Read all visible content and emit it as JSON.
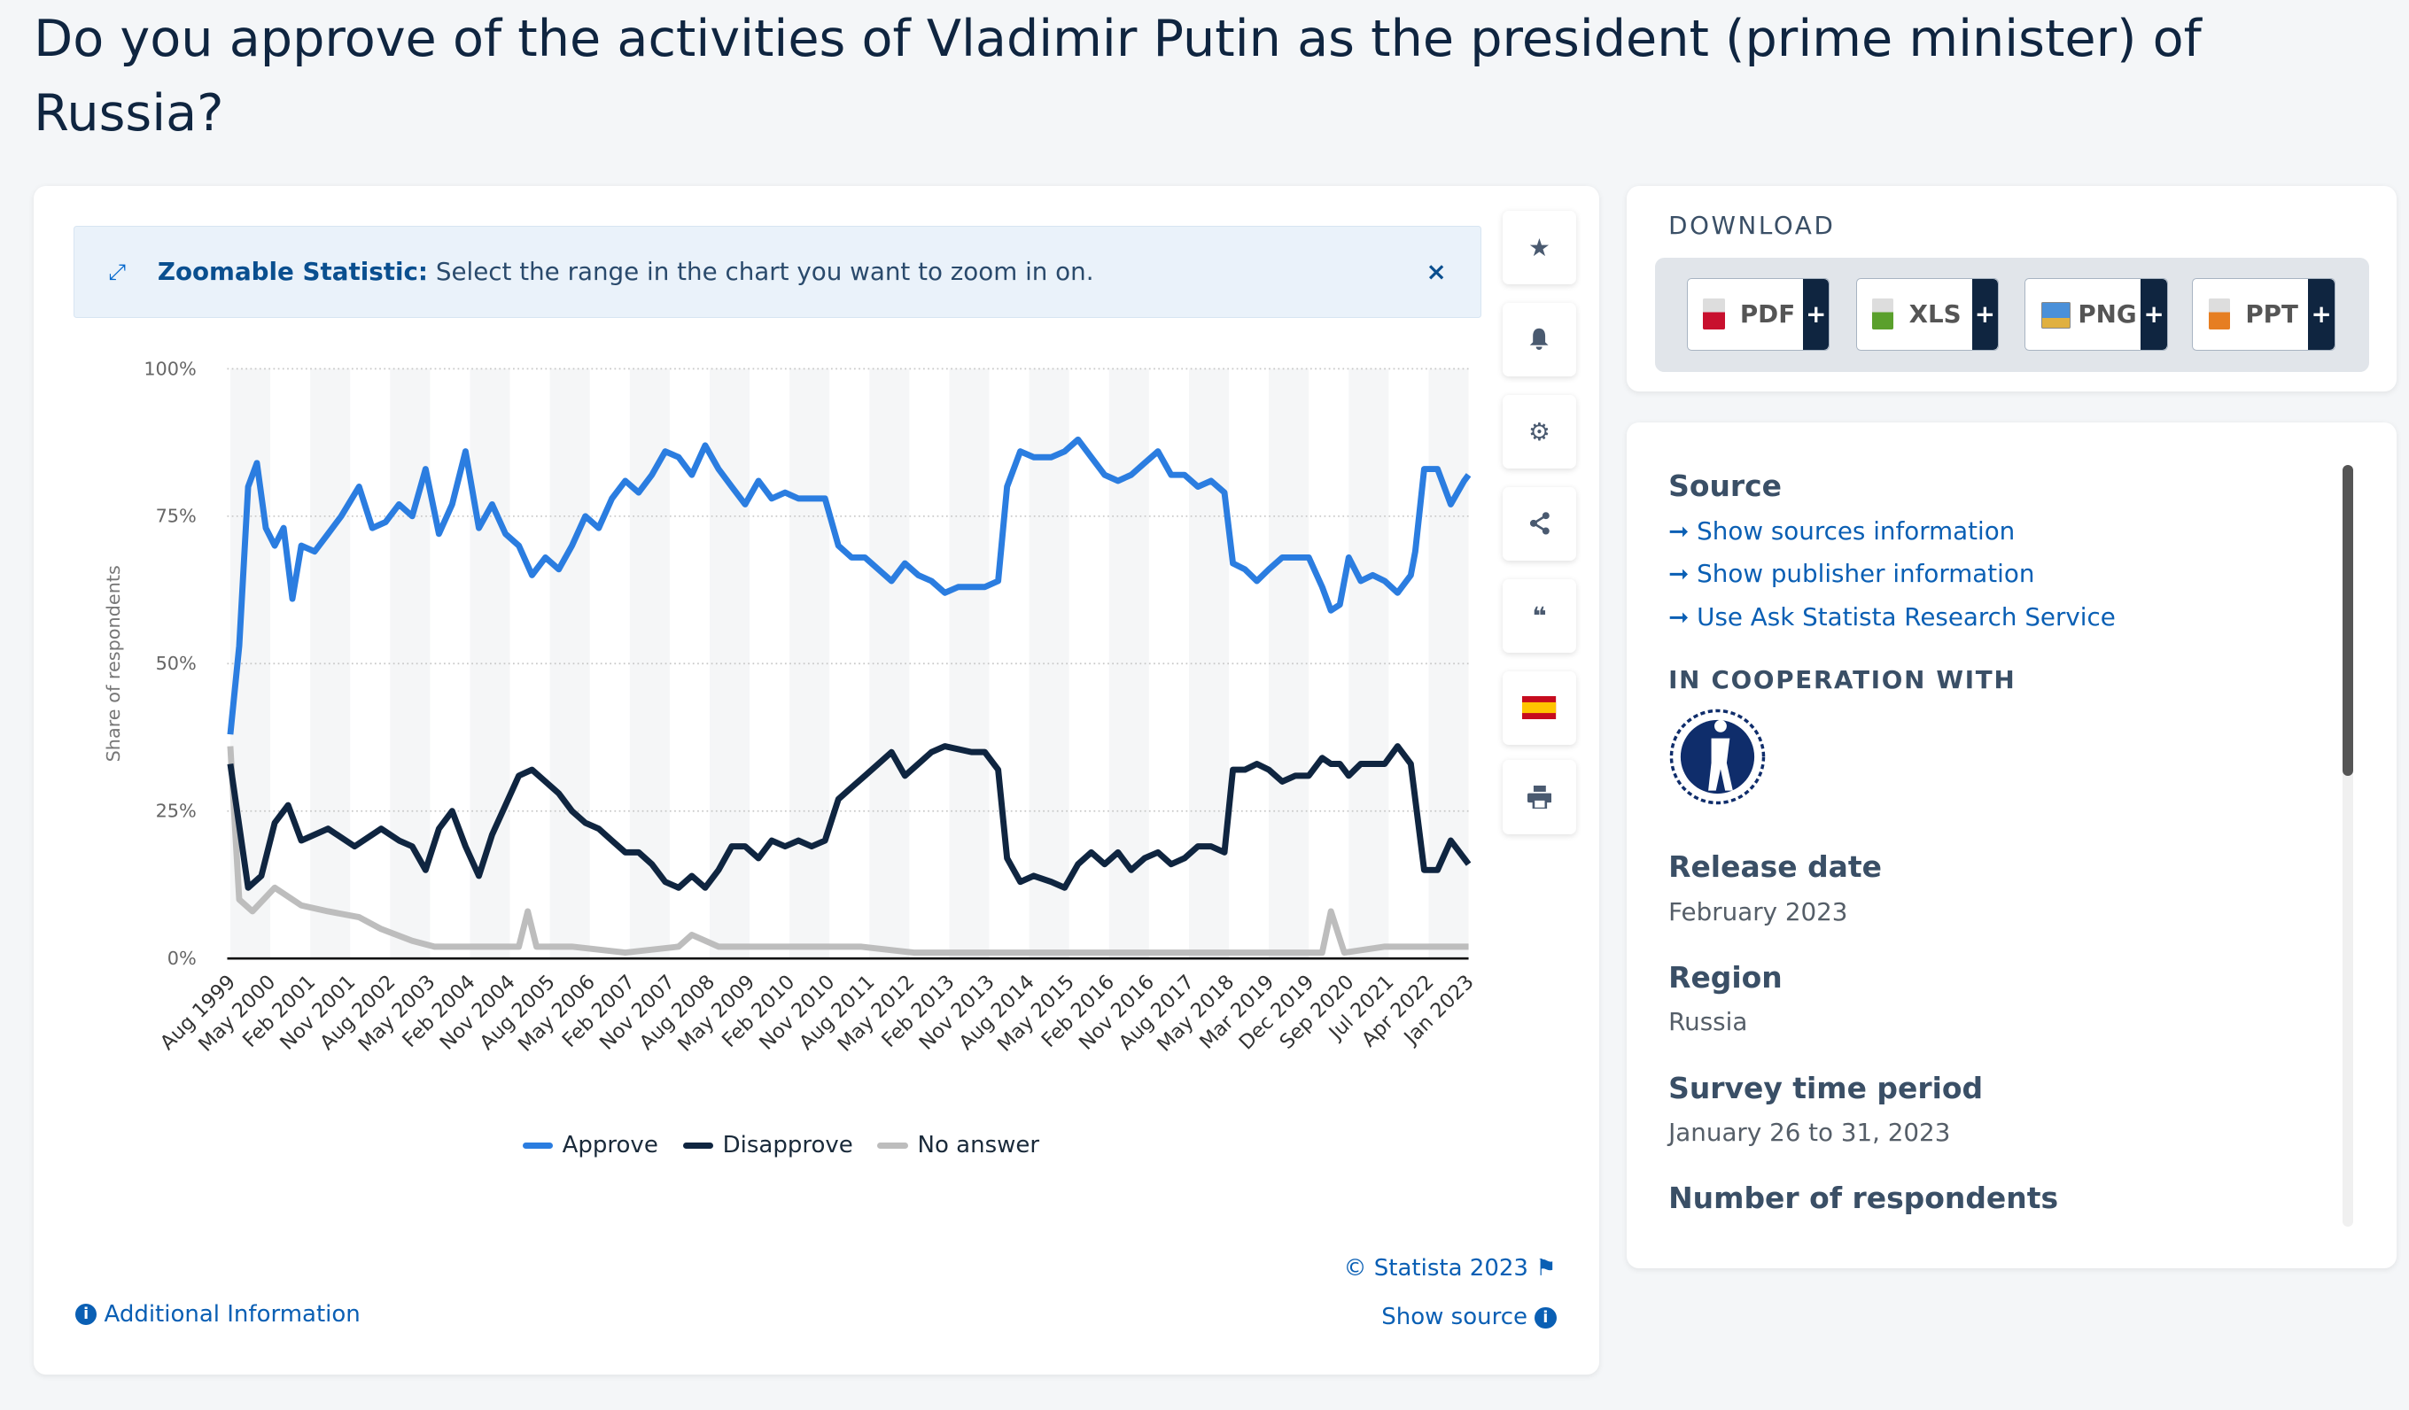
{
  "title": "Do you approve of the activities of Vladimir Putin as the president (prime minister) of Russia?",
  "zoom_banner": {
    "bold": "Zoomable Statistic:",
    "text": "Select the range in the chart you want to zoom in on.",
    "close": "×"
  },
  "tools": [
    {
      "icon": "star-icon"
    },
    {
      "icon": "bell-icon"
    },
    {
      "icon": "gear-icon"
    },
    {
      "icon": "share-icon"
    },
    {
      "icon": "quote-icon"
    },
    {
      "icon": "spain-flag-icon"
    },
    {
      "icon": "print-icon"
    }
  ],
  "footer": {
    "copyright": "© Statista 2023",
    "show_source": "Show source",
    "additional_info": "Additional Information"
  },
  "download": {
    "heading": "DOWNLOAD",
    "buttons": [
      {
        "label": "PDF",
        "color": "#c8102e"
      },
      {
        "label": "XLS",
        "color": "#5aa02c"
      },
      {
        "label": "PNG",
        "color": "#4a90d9"
      },
      {
        "label": "PPT",
        "color": "#e67e22"
      }
    ]
  },
  "sidebar": {
    "source_heading": "Source",
    "links": [
      "Show sources information",
      "Show publisher information",
      "Use Ask Statista Research Service"
    ],
    "cooperation_heading": "IN COOPERATION WITH",
    "cooperation_logo": "Levada-Center",
    "release_label": "Release date",
    "release_value": "February 2023",
    "region_label": "Region",
    "region_value": "Russia",
    "period_label": "Survey time period",
    "period_value": "January 26 to 31, 2023",
    "respondents_label": "Number of respondents"
  },
  "chart_data": {
    "type": "line",
    "ylabel": "Share of respondents",
    "ylim": [
      0,
      100
    ],
    "yticks": [
      "0%",
      "25%",
      "50%",
      "75%",
      "100%"
    ],
    "grid": true,
    "legend_position": "bottom",
    "x_tick_labels": [
      "Aug 1999",
      "May 2000",
      "Feb 2001",
      "Nov 2001",
      "Aug 2002",
      "May 2003",
      "Feb 2004",
      "Nov 2004",
      "Aug 2005",
      "May 2006",
      "Feb 2007",
      "Nov 2007",
      "Aug 2008",
      "May 2009",
      "Feb 2010",
      "Nov 2010",
      "Aug 2011",
      "May 2012",
      "Feb 2013",
      "Nov 2013",
      "Aug 2014",
      "May 2015",
      "Feb 2016",
      "Nov 2016",
      "Aug 2017",
      "May 2018",
      "Mar 2019",
      "Dec 2019",
      "Sep 2020",
      "Jul 2021",
      "Apr 2022",
      "Jan 2023"
    ],
    "series": [
      {
        "name": "Approve",
        "color": "#2b7de0",
        "points": [
          [
            "1999-08",
            38
          ],
          [
            "1999-10",
            53
          ],
          [
            "1999-12",
            80
          ],
          [
            "2000-02",
            84
          ],
          [
            "2000-04",
            73
          ],
          [
            "2000-06",
            70
          ],
          [
            "2000-08",
            73
          ],
          [
            "2000-10",
            61
          ],
          [
            "2000-12",
            70
          ],
          [
            "2001-03",
            69
          ],
          [
            "2001-06",
            72
          ],
          [
            "2001-09",
            75
          ],
          [
            "2002-01",
            80
          ],
          [
            "2002-04",
            73
          ],
          [
            "2002-07",
            74
          ],
          [
            "2002-10",
            77
          ],
          [
            "2003-01",
            75
          ],
          [
            "2003-04",
            83
          ],
          [
            "2003-07",
            72
          ],
          [
            "2003-10",
            77
          ],
          [
            "2004-01",
            86
          ],
          [
            "2004-04",
            73
          ],
          [
            "2004-07",
            77
          ],
          [
            "2004-10",
            72
          ],
          [
            "2005-01",
            70
          ],
          [
            "2005-04",
            65
          ],
          [
            "2005-07",
            68
          ],
          [
            "2005-10",
            66
          ],
          [
            "2006-01",
            70
          ],
          [
            "2006-04",
            75
          ],
          [
            "2006-07",
            73
          ],
          [
            "2006-10",
            78
          ],
          [
            "2007-01",
            81
          ],
          [
            "2007-04",
            79
          ],
          [
            "2007-07",
            82
          ],
          [
            "2007-10",
            86
          ],
          [
            "2008-01",
            85
          ],
          [
            "2008-04",
            82
          ],
          [
            "2008-07",
            87
          ],
          [
            "2008-10",
            83
          ],
          [
            "2009-01",
            80
          ],
          [
            "2009-04",
            77
          ],
          [
            "2009-07",
            81
          ],
          [
            "2009-10",
            78
          ],
          [
            "2010-01",
            79
          ],
          [
            "2010-04",
            78
          ],
          [
            "2010-07",
            78
          ],
          [
            "2010-10",
            78
          ],
          [
            "2011-01",
            70
          ],
          [
            "2011-04",
            68
          ],
          [
            "2011-07",
            68
          ],
          [
            "2011-10",
            66
          ],
          [
            "2012-01",
            64
          ],
          [
            "2012-04",
            67
          ],
          [
            "2012-07",
            65
          ],
          [
            "2012-10",
            64
          ],
          [
            "2013-01",
            62
          ],
          [
            "2013-04",
            63
          ],
          [
            "2013-07",
            63
          ],
          [
            "2013-10",
            63
          ],
          [
            "2014-01",
            64
          ],
          [
            "2014-03",
            80
          ],
          [
            "2014-06",
            86
          ],
          [
            "2014-09",
            85
          ],
          [
            "2015-01",
            85
          ],
          [
            "2015-04",
            86
          ],
          [
            "2015-07",
            88
          ],
          [
            "2015-10",
            85
          ],
          [
            "2016-01",
            82
          ],
          [
            "2016-04",
            81
          ],
          [
            "2016-07",
            82
          ],
          [
            "2016-10",
            84
          ],
          [
            "2017-01",
            86
          ],
          [
            "2017-04",
            82
          ],
          [
            "2017-07",
            82
          ],
          [
            "2017-10",
            80
          ],
          [
            "2018-01",
            81
          ],
          [
            "2018-04",
            79
          ],
          [
            "2018-06",
            67
          ],
          [
            "2018-09",
            66
          ],
          [
            "2018-12",
            64
          ],
          [
            "2019-03",
            66
          ],
          [
            "2019-06",
            68
          ],
          [
            "2019-09",
            68
          ],
          [
            "2019-12",
            68
          ],
          [
            "2020-03",
            63
          ],
          [
            "2020-05",
            59
          ],
          [
            "2020-07",
            60
          ],
          [
            "2020-09",
            68
          ],
          [
            "2020-12",
            64
          ],
          [
            "2021-03",
            65
          ],
          [
            "2021-06",
            64
          ],
          [
            "2021-09",
            62
          ],
          [
            "2021-12",
            65
          ],
          [
            "2022-01",
            69
          ],
          [
            "2022-03",
            83
          ],
          [
            "2022-06",
            83
          ],
          [
            "2022-09",
            77
          ],
          [
            "2022-12",
            81
          ],
          [
            "2023-01",
            82
          ]
        ]
      },
      {
        "name": "Disapprove",
        "color": "#0f2540",
        "points": [
          [
            "1999-08",
            33
          ],
          [
            "1999-12",
            12
          ],
          [
            "2000-03",
            14
          ],
          [
            "2000-06",
            23
          ],
          [
            "2000-09",
            26
          ],
          [
            "2000-12",
            20
          ],
          [
            "2001-06",
            22
          ],
          [
            "2001-12",
            19
          ],
          [
            "2002-06",
            22
          ],
          [
            "2002-10",
            20
          ],
          [
            "2003-01",
            19
          ],
          [
            "2003-04",
            15
          ],
          [
            "2003-07",
            22
          ],
          [
            "2003-10",
            25
          ],
          [
            "2004-01",
            19
          ],
          [
            "2004-04",
            14
          ],
          [
            "2004-07",
            21
          ],
          [
            "2004-10",
            26
          ],
          [
            "2005-01",
            31
          ],
          [
            "2005-04",
            32
          ],
          [
            "2005-07",
            30
          ],
          [
            "2005-10",
            28
          ],
          [
            "2006-01",
            25
          ],
          [
            "2006-04",
            23
          ],
          [
            "2006-07",
            22
          ],
          [
            "2006-10",
            20
          ],
          [
            "2007-01",
            18
          ],
          [
            "2007-04",
            18
          ],
          [
            "2007-07",
            16
          ],
          [
            "2007-10",
            13
          ],
          [
            "2008-01",
            12
          ],
          [
            "2008-04",
            14
          ],
          [
            "2008-07",
            12
          ],
          [
            "2008-10",
            15
          ],
          [
            "2009-01",
            19
          ],
          [
            "2009-04",
            19
          ],
          [
            "2009-07",
            17
          ],
          [
            "2009-10",
            20
          ],
          [
            "2010-01",
            19
          ],
          [
            "2010-04",
            20
          ],
          [
            "2010-07",
            19
          ],
          [
            "2010-10",
            20
          ],
          [
            "2011-01",
            27
          ],
          [
            "2011-04",
            29
          ],
          [
            "2011-07",
            31
          ],
          [
            "2011-10",
            33
          ],
          [
            "2012-01",
            35
          ],
          [
            "2012-04",
            31
          ],
          [
            "2012-07",
            33
          ],
          [
            "2012-10",
            35
          ],
          [
            "2013-01",
            36
          ],
          [
            "2013-07",
            35
          ],
          [
            "2013-10",
            35
          ],
          [
            "2014-01",
            32
          ],
          [
            "2014-03",
            17
          ],
          [
            "2014-06",
            13
          ],
          [
            "2014-09",
            14
          ],
          [
            "2015-01",
            13
          ],
          [
            "2015-04",
            12
          ],
          [
            "2015-07",
            16
          ],
          [
            "2015-10",
            18
          ],
          [
            "2016-01",
            16
          ],
          [
            "2016-04",
            18
          ],
          [
            "2016-07",
            15
          ],
          [
            "2016-10",
            17
          ],
          [
            "2017-01",
            18
          ],
          [
            "2017-04",
            16
          ],
          [
            "2017-07",
            17
          ],
          [
            "2017-10",
            19
          ],
          [
            "2018-01",
            19
          ],
          [
            "2018-04",
            18
          ],
          [
            "2018-06",
            32
          ],
          [
            "2018-09",
            32
          ],
          [
            "2018-12",
            33
          ],
          [
            "2019-03",
            32
          ],
          [
            "2019-06",
            30
          ],
          [
            "2019-09",
            31
          ],
          [
            "2019-12",
            31
          ],
          [
            "2020-03",
            34
          ],
          [
            "2020-05",
            33
          ],
          [
            "2020-07",
            33
          ],
          [
            "2020-09",
            31
          ],
          [
            "2020-12",
            33
          ],
          [
            "2021-03",
            33
          ],
          [
            "2021-06",
            33
          ],
          [
            "2021-09",
            36
          ],
          [
            "2021-12",
            33
          ],
          [
            "2022-01",
            27
          ],
          [
            "2022-03",
            15
          ],
          [
            "2022-06",
            15
          ],
          [
            "2022-09",
            20
          ],
          [
            "2022-12",
            17
          ],
          [
            "2023-01",
            16
          ]
        ]
      },
      {
        "name": "No answer",
        "color": "#bdbdbd",
        "points": [
          [
            "1999-08",
            36
          ],
          [
            "1999-10",
            10
          ],
          [
            "2000-01",
            8
          ],
          [
            "2000-06",
            12
          ],
          [
            "2000-12",
            9
          ],
          [
            "2001-06",
            8
          ],
          [
            "2002-01",
            7
          ],
          [
            "2002-06",
            5
          ],
          [
            "2003-01",
            3
          ],
          [
            "2003-06",
            2
          ],
          [
            "2004-01",
            2
          ],
          [
            "2004-06",
            2
          ],
          [
            "2005-01",
            2
          ],
          [
            "2005-03",
            8
          ],
          [
            "2005-05",
            2
          ],
          [
            "2006-01",
            2
          ],
          [
            "2007-01",
            1
          ],
          [
            "2008-01",
            2
          ],
          [
            "2008-04",
            4
          ],
          [
            "2008-10",
            2
          ],
          [
            "2009-06",
            2
          ],
          [
            "2010-06",
            2
          ],
          [
            "2011-06",
            2
          ],
          [
            "2012-06",
            1
          ],
          [
            "2013-06",
            1
          ],
          [
            "2014-06",
            1
          ],
          [
            "2016-06",
            1
          ],
          [
            "2018-06",
            1
          ],
          [
            "2019-06",
            1
          ],
          [
            "2020-03",
            1
          ],
          [
            "2020-05",
            8
          ],
          [
            "2020-08",
            1
          ],
          [
            "2021-06",
            2
          ],
          [
            "2022-06",
            2
          ],
          [
            "2023-01",
            2
          ]
        ]
      }
    ]
  }
}
